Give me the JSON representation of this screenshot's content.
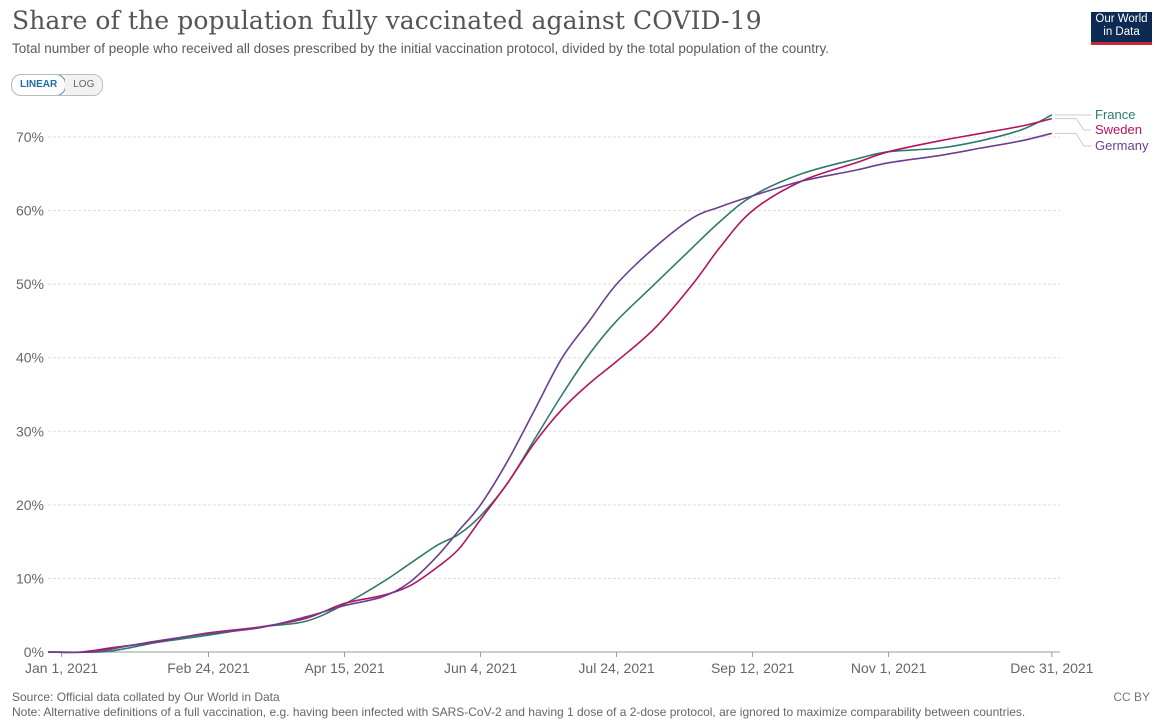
{
  "header": {
    "title": "Share of the population fully vaccinated against COVID-19",
    "subtitle": "Total number of people who received all doses prescribed by the initial vaccination protocol, divided by the total population of the country.",
    "logo_line1": "Our World",
    "logo_line2": "in Data"
  },
  "controls": {
    "linear_label": "LINEAR",
    "log_label": "LOG",
    "selected": "LINEAR"
  },
  "footer": {
    "source": "Source: Official data collated by Our World in Data",
    "note": "Note: Alternative definitions of a full vaccination, e.g. having been infected with SARS-CoV-2 and having 1 dose of a 2-dose protocol, are ignored to maximize comparability between countries.",
    "license": "CC BY"
  },
  "chart_data": {
    "type": "line",
    "title": "Share of the population fully vaccinated against COVID-19",
    "ylim": [
      0,
      70
    ],
    "y_ticks": [
      0,
      10,
      20,
      30,
      40,
      50,
      60,
      70
    ],
    "y_tick_labels": [
      "0%",
      "10%",
      "20%",
      "30%",
      "40%",
      "50%",
      "60%",
      "70%"
    ],
    "x_range": [
      "2020-12-27",
      "2022-01-03"
    ],
    "x_ticks": [
      "2021-01-01",
      "2021-02-24",
      "2021-04-15",
      "2021-06-04",
      "2021-07-24",
      "2021-09-12",
      "2021-11-01",
      "2021-12-31"
    ],
    "x_tick_labels": [
      "Jan 1, 2021",
      "Feb 24, 2021",
      "Apr 15, 2021",
      "Jun 4, 2021",
      "Jul 24, 2021",
      "Sep 12, 2021",
      "Nov 1, 2021",
      "Dec 31, 2021"
    ],
    "grid": true,
    "legend": "right",
    "series": [
      {
        "name": "France",
        "color": "#2e7b6e",
        "points": [
          [
            "2020-12-27",
            0
          ],
          [
            "2021-01-15",
            0
          ],
          [
            "2021-01-25",
            0.5
          ],
          [
            "2021-02-05",
            1.3
          ],
          [
            "2021-02-24",
            2.3
          ],
          [
            "2021-03-15",
            3.4
          ],
          [
            "2021-04-01",
            4.2
          ],
          [
            "2021-04-15",
            6.5
          ],
          [
            "2021-04-29",
            9.5
          ],
          [
            "2021-05-09",
            12
          ],
          [
            "2021-05-19",
            14.5
          ],
          [
            "2021-05-27",
            16
          ],
          [
            "2021-06-04",
            18.5
          ],
          [
            "2021-06-14",
            23
          ],
          [
            "2021-06-24",
            29
          ],
          [
            "2021-07-04",
            35
          ],
          [
            "2021-07-14",
            40.5
          ],
          [
            "2021-07-24",
            45
          ],
          [
            "2021-08-07",
            50
          ],
          [
            "2021-08-21",
            55
          ],
          [
            "2021-08-31",
            58.5
          ],
          [
            "2021-09-12",
            62
          ],
          [
            "2021-09-30",
            65
          ],
          [
            "2021-10-20",
            67
          ],
          [
            "2021-11-01",
            68
          ],
          [
            "2021-11-20",
            68.5
          ],
          [
            "2021-12-05",
            69.5
          ],
          [
            "2021-12-20",
            71
          ],
          [
            "2021-12-31",
            73
          ]
        ]
      },
      {
        "name": "Sweden",
        "color": "#b5135d",
        "points": [
          [
            "2020-12-27",
            0
          ],
          [
            "2021-01-08",
            0
          ],
          [
            "2021-01-20",
            0.6
          ],
          [
            "2021-02-05",
            1.4
          ],
          [
            "2021-02-24",
            2.6
          ],
          [
            "2021-03-15",
            3.4
          ],
          [
            "2021-04-01",
            4.6
          ],
          [
            "2021-04-15",
            6.6
          ],
          [
            "2021-04-29",
            7.7
          ],
          [
            "2021-05-09",
            9
          ],
          [
            "2021-05-19",
            11.5
          ],
          [
            "2021-05-27",
            14
          ],
          [
            "2021-06-04",
            18
          ],
          [
            "2021-06-14",
            23
          ],
          [
            "2021-06-24",
            28.5
          ],
          [
            "2021-07-04",
            33
          ],
          [
            "2021-07-14",
            36.5
          ],
          [
            "2021-07-24",
            39.5
          ],
          [
            "2021-08-07",
            44
          ],
          [
            "2021-08-21",
            50
          ],
          [
            "2021-08-31",
            55
          ],
          [
            "2021-09-12",
            60
          ],
          [
            "2021-09-30",
            64
          ],
          [
            "2021-10-20",
            66.5
          ],
          [
            "2021-11-01",
            68
          ],
          [
            "2021-11-20",
            69.5
          ],
          [
            "2021-12-05",
            70.5
          ],
          [
            "2021-12-20",
            71.5
          ],
          [
            "2021-12-31",
            72.5
          ]
        ]
      },
      {
        "name": "Germany",
        "color": "#6b3f8f",
        "points": [
          [
            "2020-12-27",
            0
          ],
          [
            "2021-01-12",
            0
          ],
          [
            "2021-01-25",
            0.8
          ],
          [
            "2021-02-05",
            1.5
          ],
          [
            "2021-02-24",
            2.5
          ],
          [
            "2021-03-15",
            3.3
          ],
          [
            "2021-04-01",
            4.8
          ],
          [
            "2021-04-15",
            6.3
          ],
          [
            "2021-04-29",
            7.5
          ],
          [
            "2021-05-09",
            9.5
          ],
          [
            "2021-05-19",
            13
          ],
          [
            "2021-05-27",
            16.5
          ],
          [
            "2021-06-04",
            20
          ],
          [
            "2021-06-14",
            26
          ],
          [
            "2021-06-24",
            33
          ],
          [
            "2021-07-04",
            40
          ],
          [
            "2021-07-14",
            45
          ],
          [
            "2021-07-24",
            50
          ],
          [
            "2021-08-07",
            55
          ],
          [
            "2021-08-21",
            59
          ],
          [
            "2021-08-31",
            60.5
          ],
          [
            "2021-09-12",
            62
          ],
          [
            "2021-09-30",
            64
          ],
          [
            "2021-10-20",
            65.5
          ],
          [
            "2021-11-01",
            66.5
          ],
          [
            "2021-11-20",
            67.5
          ],
          [
            "2021-12-05",
            68.5
          ],
          [
            "2021-12-20",
            69.5
          ],
          [
            "2021-12-31",
            70.5
          ]
        ]
      }
    ]
  }
}
